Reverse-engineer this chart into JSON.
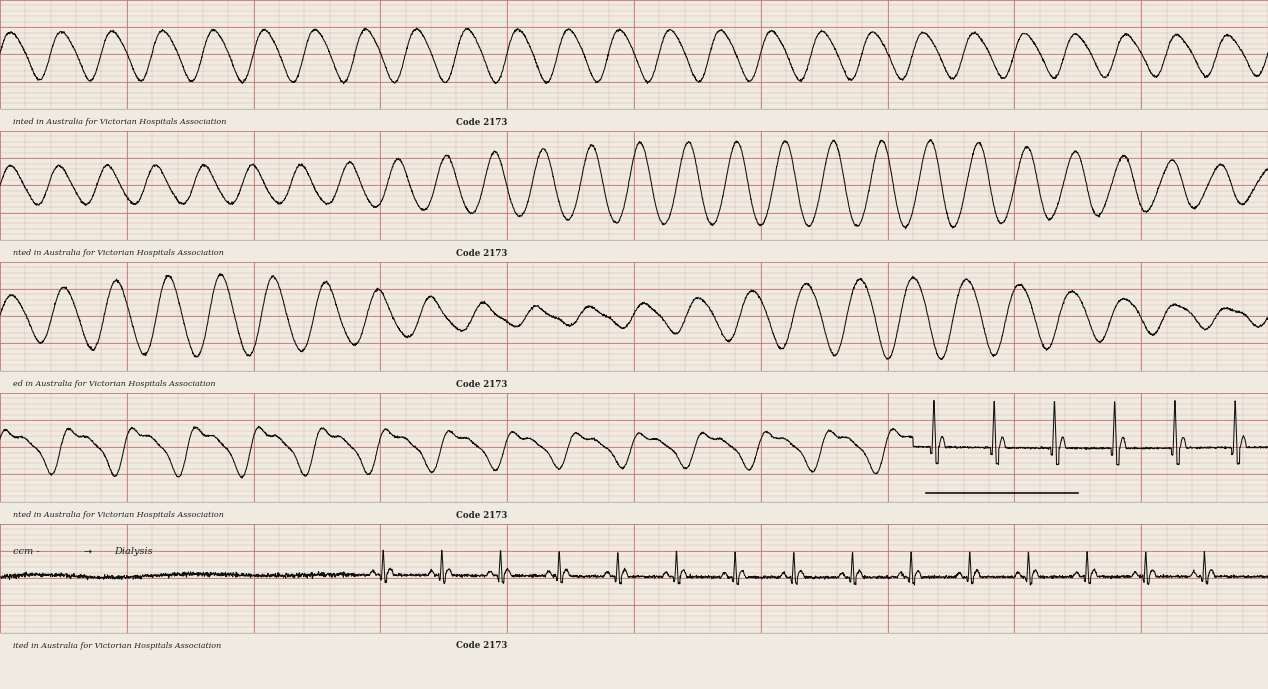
{
  "bg_color": "#f0ebe0",
  "grid_minor_color": "#d4a0a0",
  "grid_major_color": "#c07070",
  "line_color": "#111111",
  "text_color": "#222222",
  "fig_width": 12.68,
  "fig_height": 6.89,
  "num_strips": 5,
  "code_text": "Code 2173",
  "annotation": "ccm - Dialysis",
  "label_texts": [
    "inted in Australia for Victorian Hospitals Association",
    "nted in Australia for Victorian Hospitals Association",
    "ed in Australia for Victorian Hospitals Association",
    "nted in Australia for Victorian Hospitals Association",
    "ited in Australia for Victorian Hospitals Association"
  ]
}
